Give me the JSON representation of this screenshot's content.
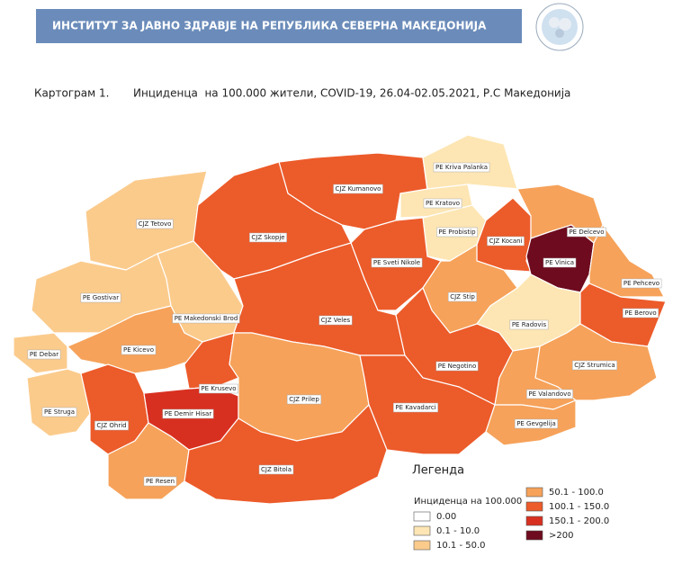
{
  "header": {
    "title": "ИНСТИТУТ ЗА ЈАВНО ЗДРАВЈЕ НА РЕПУБЛИКА СЕВЕРНА МАКЕДОНИЈА"
  },
  "caption": {
    "number": "Картограм 1.",
    "text": "Инциденца  на 100.000 жители, COVID-19, 26.04-02.05.2021, Р.С Македонија"
  },
  "map": {
    "regions": [
      {
        "label": "CJZ Kumanovo",
        "color": "#ec5b2a"
      },
      {
        "label": "PE Kriva Palanka",
        "color": "#fde6b4"
      },
      {
        "label": "PE Kratovo",
        "color": "#fde6b4"
      },
      {
        "label": "PE Probistip",
        "color": "#fde6b4"
      },
      {
        "label": "CJZ Kocani",
        "color": "#ec5b2a"
      },
      {
        "label": "PE Delcevo",
        "color": "#f6a25a"
      },
      {
        "label": "PE Vinica",
        "color": "#6e0b1e"
      },
      {
        "label": "PE Pehcevo",
        "color": "#f6a25a"
      },
      {
        "label": "PE Berovo",
        "color": "#ec5b2a"
      },
      {
        "label": "CJZ Tetovo",
        "color": "#fbcb8c"
      },
      {
        "label": "CJZ Skopje",
        "color": "#ec5b2a"
      },
      {
        "label": "PE Sveti Nikole",
        "color": "#ec5b2a"
      },
      {
        "label": "CJZ Stip",
        "color": "#f6a25a"
      },
      {
        "label": "PE Gostivar",
        "color": "#fbcb8c"
      },
      {
        "label": "PE Makedonski Brod",
        "color": "#fbcb8c"
      },
      {
        "label": "CJZ Veles",
        "color": "#ec5b2a"
      },
      {
        "label": "PE Radovis",
        "color": "#fde6b4"
      },
      {
        "label": "PE Debar",
        "color": "#fbcb8c"
      },
      {
        "label": "PE Kicevo",
        "color": "#f6a25a"
      },
      {
        "label": "PE Negotino",
        "color": "#ec5b2a"
      },
      {
        "label": "CJZ Strumica",
        "color": "#f6a25a"
      },
      {
        "label": "PE Struga",
        "color": "#fbcb8c"
      },
      {
        "label": "CJZ Ohrid",
        "color": "#ec5b2a"
      },
      {
        "label": "PE Krusevo",
        "color": "#ec5b2a"
      },
      {
        "label": "PE Demir Hisar",
        "color": "#d83020"
      },
      {
        "label": "CJZ Prilep",
        "color": "#f6a25a"
      },
      {
        "label": "PE Kavadarci",
        "color": "#ec5b2a"
      },
      {
        "label": "PE Valandovo",
        "color": "#f6a25a"
      },
      {
        "label": "PE Gevgelija",
        "color": "#f6a25a"
      },
      {
        "label": "PE Resen",
        "color": "#f6a25a"
      },
      {
        "label": "CJZ Bitola",
        "color": "#ec5b2a"
      }
    ]
  },
  "legend": {
    "title": "Легенда",
    "subtitle": "Инциденца на 100.000",
    "items": [
      {
        "label": "0.00",
        "color": "#ffffff"
      },
      {
        "label": "0.1 - 10.0",
        "color": "#fde6b4"
      },
      {
        "label": "10.1 - 50.0",
        "color": "#fbcb8c"
      },
      {
        "label": "50.1 - 100.0",
        "color": "#f6a25a"
      },
      {
        "label": "100.1 - 150.0",
        "color": "#ec5b2a"
      },
      {
        "label": "150.1 - 200.0",
        "color": "#d83020"
      },
      {
        "label": ">200",
        "color": "#6e0b1e"
      }
    ]
  }
}
